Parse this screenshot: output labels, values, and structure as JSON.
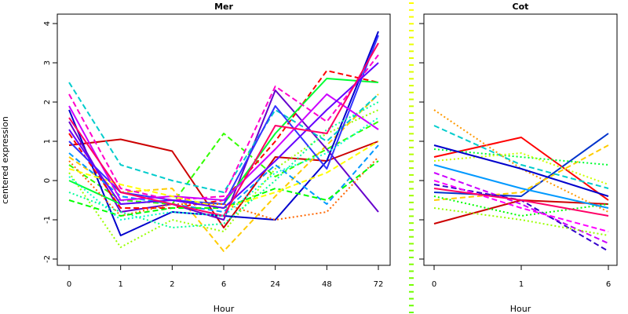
{
  "chart_data": {
    "type": "line",
    "ylabel": "centered expression",
    "palette": [
      "#ff0000",
      "#ff3300",
      "#ff6600",
      "#ff9900",
      "#ffcc00",
      "#ffff00",
      "#ccff00",
      "#99ff00",
      "#66ff00",
      "#33ff00",
      "#00ff00",
      "#00ff33",
      "#00ff66",
      "#00ff99",
      "#00ffcc",
      "#00ffff",
      "#00ccff",
      "#0099ff",
      "#0066ff",
      "#0033ff",
      "#0000ff",
      "#3300ff",
      "#6600ff",
      "#9900ff",
      "#cc00ff",
      "#ff00ff",
      "#ff00cc",
      "#ff0099",
      "#ff0066",
      "#ff0033"
    ],
    "highlight_color": "#ff0044",
    "panels": [
      {
        "id": "mer",
        "title": "Mer",
        "xlabel": "Hour",
        "categories": [
          "0",
          "1",
          "2",
          "6",
          "24",
          "48",
          "72"
        ],
        "ylim": [
          -2,
          4
        ],
        "yticks": [
          "-2",
          "-1",
          "0",
          "1",
          "2",
          "3",
          "4"
        ],
        "series": [
          {
            "color": "#cc0000",
            "style": "solid",
            "values": [
              0.9,
              1.05,
              0.75,
              -1.2,
              0.6,
              0.5,
              1.0
            ]
          },
          {
            "color": "#33ff00",
            "style": "dashed",
            "values": [
              0.4,
              -0.5,
              -0.6,
              1.2,
              0.1,
              0.8,
              1.5
            ]
          },
          {
            "color": "#99ff00",
            "style": "dotted",
            "values": [
              0.2,
              -1.7,
              -1.0,
              -1.3,
              0.3,
              1.2,
              1.8
            ]
          },
          {
            "color": "#ffcc00",
            "style": "dashed",
            "values": [
              0.6,
              -0.3,
              -0.2,
              -1.8,
              -0.4,
              0.9,
              2.2
            ]
          },
          {
            "color": "#0000cc",
            "style": "solid",
            "values": [
              1.8,
              -1.4,
              -0.8,
              -0.9,
              -1.0,
              0.5,
              3.8
            ]
          },
          {
            "color": "#6600cc",
            "style": "solid",
            "values": [
              1.5,
              -0.8,
              -0.6,
              -1.0,
              2.3,
              0.8,
              -0.8
            ]
          },
          {
            "color": "#ff0000",
            "style": "dashed",
            "values": [
              1.2,
              -0.7,
              -0.7,
              -0.5,
              1.0,
              2.8,
              2.5
            ]
          },
          {
            "color": "#00ff33",
            "style": "solid",
            "values": [
              0.0,
              -0.6,
              -0.5,
              -0.6,
              1.2,
              2.6,
              2.5
            ]
          },
          {
            "color": "#00cccc",
            "style": "dashed",
            "values": [
              2.5,
              0.4,
              0.0,
              -0.3,
              1.8,
              1.0,
              2.2
            ]
          },
          {
            "color": "#3333ff",
            "style": "solid",
            "values": [
              1.0,
              -0.3,
              -0.5,
              -0.6,
              1.9,
              0.3,
              3.7
            ]
          },
          {
            "color": "#ff00cc",
            "style": "dashed",
            "values": [
              2.2,
              -0.2,
              -0.5,
              -0.4,
              2.4,
              1.5,
              3.2
            ]
          },
          {
            "color": "#ff6600",
            "style": "dotted",
            "values": [
              0.5,
              -0.9,
              -0.6,
              -0.6,
              -1.0,
              -0.8,
              0.6
            ]
          },
          {
            "color": "#00ff99",
            "style": "dotted",
            "values": [
              -0.3,
              -0.8,
              -1.2,
              -1.1,
              0.0,
              1.3,
              2.0
            ]
          },
          {
            "color": "#0099ff",
            "style": "dashed",
            "values": [
              0.7,
              -0.4,
              -0.6,
              -0.8,
              0.4,
              -0.6,
              0.9
            ]
          },
          {
            "color": "#cc00ff",
            "style": "solid",
            "values": [
              1.9,
              -0.5,
              -0.4,
              -0.5,
              0.8,
              2.2,
              1.3
            ]
          },
          {
            "color": "#00ff00",
            "style": "dashed",
            "values": [
              -0.5,
              -0.9,
              -0.7,
              -0.7,
              -0.2,
              -0.5,
              0.5
            ]
          },
          {
            "color": "#ffff00",
            "style": "dashed",
            "values": [
              0.3,
              -0.1,
              -0.4,
              -0.7,
              -0.3,
              0.2,
              1.0
            ]
          },
          {
            "color": "#6600ff",
            "style": "solid",
            "values": [
              1.3,
              -0.6,
              -0.5,
              -0.7,
              0.5,
              1.8,
              3.0
            ]
          },
          {
            "color": "#ff0066",
            "style": "solid",
            "values": [
              1.6,
              -0.3,
              -0.6,
              -0.9,
              1.4,
              1.2,
              3.5
            ]
          },
          {
            "color": "#00ffcc",
            "style": "dotted",
            "values": [
              0.1,
              -1.0,
              -0.8,
              -0.9,
              0.2,
              0.7,
              1.6
            ]
          }
        ]
      },
      {
        "id": "cot",
        "title": "Cot",
        "xlabel": "Hour",
        "categories": [
          "0",
          "1",
          "6"
        ],
        "ylim": [
          -2,
          4
        ],
        "yticks": [],
        "series": [
          {
            "color": "#cc0000",
            "style": "solid",
            "values": [
              -1.1,
              -0.5,
              -0.6
            ]
          },
          {
            "color": "#ff0000",
            "style": "solid",
            "values": [
              0.6,
              1.1,
              -0.5
            ]
          },
          {
            "color": "#0033cc",
            "style": "solid",
            "values": [
              -0.3,
              -0.4,
              1.2
            ]
          },
          {
            "color": "#ffcc00",
            "style": "dashed",
            "values": [
              -0.5,
              -0.3,
              0.9
            ]
          },
          {
            "color": "#ff9900",
            "style": "dotted",
            "values": [
              1.8,
              0.3,
              -0.8
            ]
          },
          {
            "color": "#00cccc",
            "style": "dashed",
            "values": [
              1.4,
              0.4,
              -0.2
            ]
          },
          {
            "color": "#00ff33",
            "style": "dotted",
            "values": [
              0.8,
              0.6,
              0.4
            ]
          },
          {
            "color": "#ccff00",
            "style": "dotted",
            "values": [
              0.5,
              0.7,
              -0.1
            ]
          },
          {
            "color": "#0000cc",
            "style": "solid",
            "values": [
              0.9,
              0.3,
              -0.4
            ]
          },
          {
            "color": "#cc00ff",
            "style": "dashed",
            "values": [
              0.2,
              -0.6,
              -1.6
            ]
          },
          {
            "color": "#3300cc",
            "style": "dashed",
            "values": [
              -0.1,
              -0.5,
              -1.8
            ]
          },
          {
            "color": "#00ff00",
            "style": "dotted",
            "values": [
              -0.4,
              -0.9,
              -0.6
            ]
          },
          {
            "color": "#ff00ff",
            "style": "dashed",
            "values": [
              0.0,
              -0.7,
              -1.3
            ]
          },
          {
            "color": "#0099ff",
            "style": "solid",
            "values": [
              0.4,
              -0.2,
              -0.7
            ]
          },
          {
            "color": "#99ff00",
            "style": "dotted",
            "values": [
              -0.7,
              -1.0,
              -1.4
            ]
          },
          {
            "color": "#ff0066",
            "style": "solid",
            "values": [
              -0.2,
              -0.5,
              -0.9
            ]
          }
        ]
      }
    ]
  },
  "divider": {
    "colors": [
      "#ffff00",
      "#66ff00"
    ]
  }
}
